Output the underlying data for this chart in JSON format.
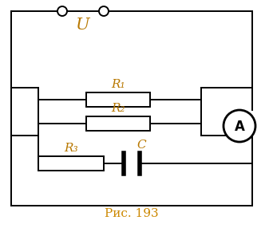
{
  "bg_color": "#ffffff",
  "border_color": "#000000",
  "label_U": "U",
  "label_R1": "R₁",
  "label_R2": "R₂",
  "label_R3": "R₃",
  "label_C": "C",
  "label_A": "A",
  "caption": "Рис. 193",
  "label_color": "#b87800",
  "caption_color": "#cc8800",
  "fig_width": 3.37,
  "fig_height": 2.86,
  "dpi": 100
}
